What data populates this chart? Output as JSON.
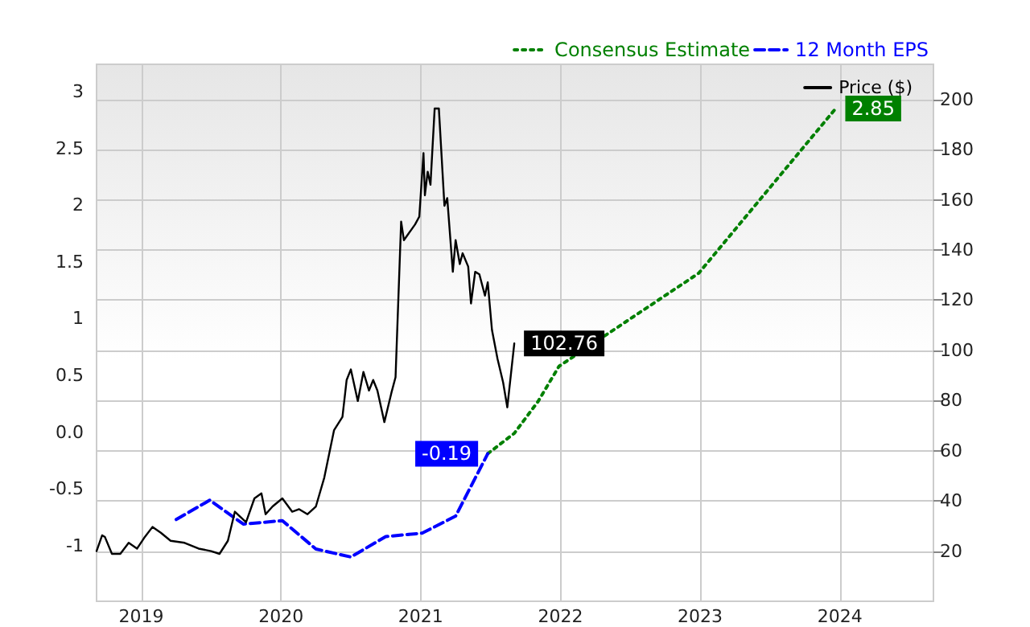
{
  "chart_data": {
    "type": "line",
    "x": [
      2018.68,
      2018.72,
      2018.74,
      2018.79,
      2018.85,
      2018.91,
      2018.97,
      2019.02,
      2019.08,
      2019.14,
      2019.21,
      2019.31,
      2019.41,
      2019.5,
      2019.56,
      2019.62,
      2019.67,
      2019.75,
      2019.81,
      2019.86,
      2019.89,
      2019.94,
      2020.01,
      2020.08,
      2020.13,
      2020.19,
      2020.25,
      2020.31,
      2020.38,
      2020.44,
      2020.47,
      2020.5,
      2020.55,
      2020.59,
      2020.63,
      2020.66,
      2020.69,
      2020.74,
      2020.79,
      2020.82,
      2020.86,
      2020.88,
      2020.96,
      2020.99,
      2021.02,
      2021.03,
      2021.05,
      2021.07,
      2021.1,
      2021.13,
      2021.17,
      2021.19,
      2021.23,
      2021.25,
      2021.28,
      2021.3,
      2021.34,
      2021.36,
      2021.39,
      2021.42,
      2021.46,
      2021.48,
      2021.51,
      2021.55,
      2021.59,
      2021.62,
      2021.67
    ],
    "series": [
      {
        "name": "Consensus Estimate",
        "color": "#008000",
        "line_style": "dotted",
        "x": [
          2021.48,
          2021.67,
          2021.84,
          2021.99,
          2022.99,
          2023.97
        ],
        "values": [
          -0.19,
          -0.01,
          0.27,
          0.58,
          1.4,
          2.85
        ],
        "value_labels": [
          null,
          null,
          null,
          null,
          null,
          "2.85"
        ]
      },
      {
        "name": "12 Month EPS",
        "color": "#0000ff",
        "line_style": "dashed",
        "x": [
          2019.25,
          2019.49,
          2019.73,
          2020.01,
          2020.25,
          2020.5,
          2020.75,
          2021.01,
          2021.25,
          2021.48
        ],
        "values": [
          -0.77,
          -0.6,
          -0.81,
          -0.78,
          -1.03,
          -1.1,
          -0.92,
          -0.89,
          -0.74,
          -0.19
        ],
        "value_labels": [
          null,
          null,
          null,
          null,
          null,
          null,
          null,
          null,
          null,
          "-0.19"
        ]
      },
      {
        "name": "Price ($)",
        "color": "#000000",
        "line_style": "solid",
        "axis": "y2",
        "values": [
          20,
          26.3,
          25.6,
          18.9,
          18.9,
          23.3,
          21,
          25.2,
          29.6,
          27.3,
          24.1,
          23.3,
          21,
          20,
          18.9,
          24.1,
          35.7,
          31.5,
          41,
          43,
          34.7,
          37.8,
          41,
          35.7,
          36.7,
          34.7,
          37.8,
          49.3,
          68.2,
          73.5,
          88.2,
          92.4,
          79.8,
          91.4,
          84,
          88.2,
          84,
          71.4,
          83,
          89.3,
          151.3,
          143.9,
          150.2,
          153.3,
          178.6,
          161.8,
          171.2,
          166,
          196.4,
          196.4,
          157.6,
          160.7,
          131.3,
          143.9,
          134.4,
          138.7,
          133.4,
          118.7,
          131.3,
          130.3,
          121.8,
          127.1,
          108.2,
          96.6,
          87.2,
          77.3,
          102.76
        ],
        "value_labels": [
          null,
          null,
          null,
          null,
          null,
          null,
          null,
          null,
          null,
          null,
          null,
          null,
          null,
          null,
          null,
          null,
          null,
          null,
          null,
          null,
          null,
          null,
          null,
          null,
          null,
          null,
          null,
          null,
          null,
          null,
          null,
          null,
          null,
          null,
          null,
          null,
          null,
          null,
          null,
          null,
          null,
          null,
          null,
          null,
          null,
          null,
          null,
          null,
          null,
          null,
          null,
          null,
          null,
          null,
          null,
          null,
          null,
          null,
          null,
          null,
          null,
          null,
          null,
          null,
          null,
          null,
          "102.76"
        ]
      }
    ],
    "xlim": [
      2018.68,
      2024.67
    ],
    "xticks": [
      2019,
      2020,
      2021,
      2022,
      2023,
      2024
    ],
    "ylim": [
      -1.49,
      3.24
    ],
    "yticks": [
      -1,
      -0.5,
      {
        "value": 0,
        "label": "0.0"
      },
      0.5,
      1,
      1.5,
      2,
      2.5,
      3
    ],
    "y2lim": [
      0,
      214
    ],
    "y2ticks": [
      20,
      40,
      60,
      80,
      100,
      120,
      140,
      160,
      180,
      200
    ],
    "grid": true,
    "legend": "top right",
    "marker": "none"
  }
}
